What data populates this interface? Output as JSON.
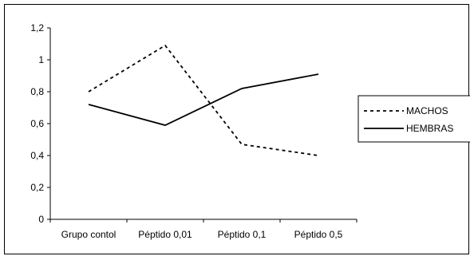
{
  "chart_data": {
    "type": "line",
    "title": "",
    "xlabel": "",
    "ylabel": "",
    "categories": [
      "Grupo contol",
      "Péptido 0,01",
      "Péptido 0,1",
      "Péptido 0,5"
    ],
    "ylim": [
      0,
      1.2
    ],
    "y_ticks": [
      0,
      0.2,
      0.4,
      0.6,
      0.8,
      1,
      1.2
    ],
    "y_tick_labels": [
      "0",
      "0,2",
      "0,4",
      "0,6",
      "0,8",
      "1",
      "1,2"
    ],
    "grid": false,
    "legend_position": "right",
    "series": [
      {
        "name": "MACHOS",
        "style": "dashed",
        "color": "#000000",
        "values": [
          0.8,
          1.09,
          0.47,
          0.4
        ]
      },
      {
        "name": "HEMBRAS",
        "style": "solid",
        "color": "#000000",
        "values": [
          0.72,
          0.59,
          0.82,
          0.91
        ]
      }
    ]
  }
}
